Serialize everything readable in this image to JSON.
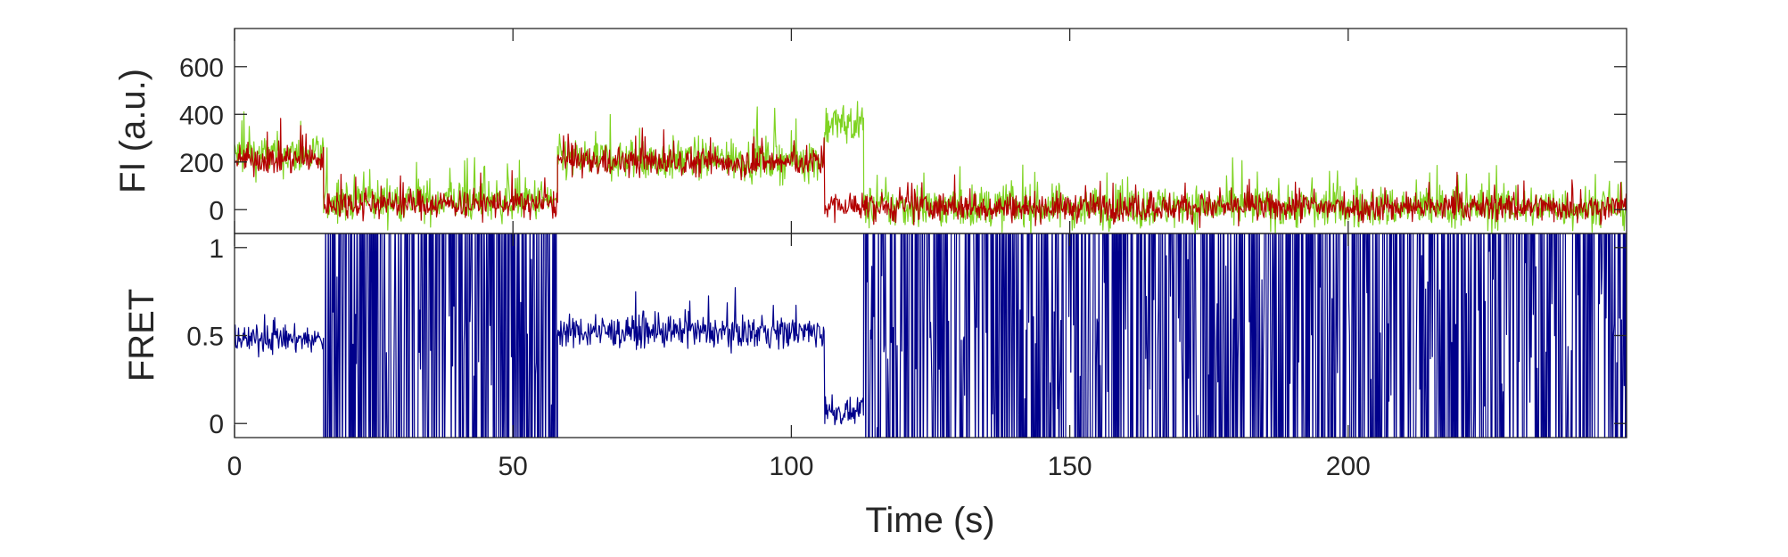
{
  "chart_data": [
    {
      "type": "line",
      "panel": "top",
      "ylabel": "FI (a.u.)",
      "xlabel": "",
      "xlim": [
        0,
        250
      ],
      "ylim": [
        -100,
        760
      ],
      "yticks": [
        0,
        200,
        400,
        600
      ],
      "ytick_labels": [
        "0",
        "200",
        "400",
        "600"
      ],
      "xticks": [
        0,
        50,
        100,
        150,
        200
      ],
      "grid": false,
      "series": [
        {
          "color": "#7ED321",
          "segments": [
            {
              "x": [
                0,
                16
              ],
              "mean": 230
            },
            {
              "x": [
                16,
                58
              ],
              "mean": 40
            },
            {
              "x": [
                58,
                106
              ],
              "mean": 210
            },
            {
              "x": [
                106,
                113
              ],
              "mean": 360
            },
            {
              "x": [
                113,
                250
              ],
              "mean": 10
            }
          ],
          "noise": 80
        },
        {
          "color": "#B30000",
          "segments": [
            {
              "x": [
                0,
                16
              ],
              "mean": 210
            },
            {
              "x": [
                16,
                58
              ],
              "mean": 25
            },
            {
              "x": [
                58,
                106
              ],
              "mean": 200
            },
            {
              "x": [
                106,
                113
              ],
              "mean": 15
            },
            {
              "x": [
                113,
                250
              ],
              "mean": 10
            }
          ],
          "noise": 55
        }
      ]
    },
    {
      "type": "line",
      "panel": "bottom",
      "ylabel": "FRET",
      "xlabel": "Time (s)",
      "xlim": [
        0,
        250
      ],
      "ylim": [
        -0.08,
        1.08
      ],
      "yticks": [
        0,
        0.5,
        1
      ],
      "ytick_labels": [
        "0",
        "0.5",
        "1"
      ],
      "xticks": [
        0,
        50,
        100,
        150,
        200
      ],
      "xtick_labels": [
        "0",
        "50",
        "100",
        "150",
        "200"
      ],
      "grid": false,
      "series": [
        {
          "color": "#00008B",
          "segments": [
            {
              "x": [
                0,
                16
              ],
              "mean": 0.48,
              "noise": 0.07,
              "mode": "signal"
            },
            {
              "x": [
                16,
                58
              ],
              "mean": 0.5,
              "noise": 0.6,
              "mode": "burst"
            },
            {
              "x": [
                58,
                106
              ],
              "mean": 0.52,
              "noise": 0.08,
              "mode": "signal"
            },
            {
              "x": [
                106,
                113
              ],
              "mean": 0.06,
              "noise": 0.06,
              "mode": "signal"
            },
            {
              "x": [
                113,
                250
              ],
              "mean": 0.5,
              "noise": 0.6,
              "mode": "burst"
            }
          ]
        }
      ]
    }
  ]
}
